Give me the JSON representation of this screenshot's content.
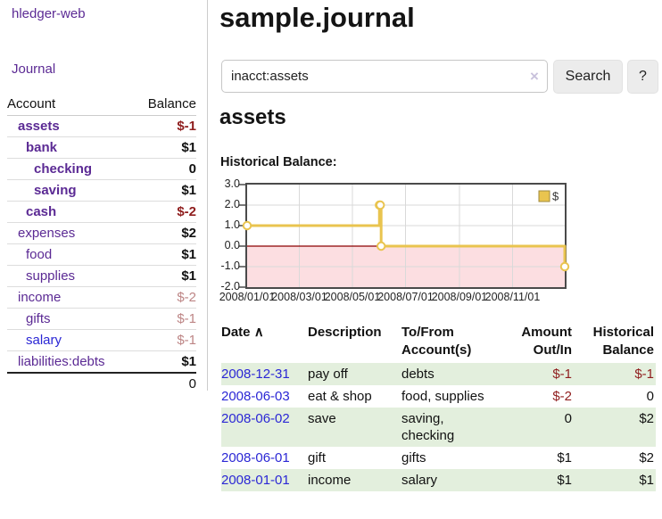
{
  "colors": {
    "purple_link": "#5b2a94",
    "blue_link": "#2b27d5",
    "negative_dark": "#8f1d1d",
    "negative_light": "#bd8585",
    "row_green": "#e3efdd",
    "accent_gold": "#e9c44f"
  },
  "sidebar": {
    "brand": "hledger-web",
    "journal_link": "Journal",
    "accounts_table": {
      "account_header": "Account",
      "balance_header": "Balance",
      "rows": [
        {
          "name": "assets",
          "balance": "$-1",
          "depth": 1,
          "bold": true,
          "tone": "neg-dark",
          "link": "purple"
        },
        {
          "name": "bank",
          "balance": "$1",
          "depth": 2,
          "bold": true,
          "tone": "normal",
          "link": "purple"
        },
        {
          "name": "checking",
          "balance": "0",
          "depth": 3,
          "bold": true,
          "tone": "normal",
          "link": "purple"
        },
        {
          "name": "saving",
          "balance": "$1",
          "depth": 3,
          "bold": true,
          "tone": "normal",
          "link": "purple"
        },
        {
          "name": "cash",
          "balance": "$-2",
          "depth": 2,
          "bold": true,
          "tone": "neg-dark",
          "link": "purple"
        },
        {
          "name": "expenses",
          "balance": "$2",
          "depth": 1,
          "bold": false,
          "tone": "normal",
          "link": "purple"
        },
        {
          "name": "food",
          "balance": "$1",
          "depth": 2,
          "bold": false,
          "tone": "normal",
          "link": "purple"
        },
        {
          "name": "supplies",
          "balance": "$1",
          "depth": 2,
          "bold": false,
          "tone": "normal",
          "link": "purple"
        },
        {
          "name": "income",
          "balance": "$-2",
          "depth": 1,
          "bold": false,
          "tone": "neg-light",
          "link": "purple"
        },
        {
          "name": "gifts",
          "balance": "$-1",
          "depth": 2,
          "bold": false,
          "tone": "neg-light",
          "link": "purple"
        },
        {
          "name": "salary",
          "balance": "$-1",
          "depth": 2,
          "bold": false,
          "tone": "neg-light",
          "link": "blue"
        },
        {
          "name": "liabilities:debts",
          "balance": "$1",
          "depth": 1,
          "bold": false,
          "tone": "normal",
          "link": "purple"
        }
      ],
      "total": "0"
    }
  },
  "main": {
    "title": "sample.journal",
    "search": {
      "value": "inacct:assets",
      "clear_icon": "×",
      "search_button": "Search",
      "help_button": "?"
    },
    "account_heading": "assets",
    "chart_title": "Historical Balance:"
  },
  "chart_data": {
    "type": "line",
    "step": true,
    "title": "Historical Balance",
    "series": [
      {
        "name": "$",
        "color": "#e9c44f",
        "points": [
          [
            "2008-01-01",
            1
          ],
          [
            "2008-06-01",
            2
          ],
          [
            "2008-06-02",
            2
          ],
          [
            "2008-06-03",
            0
          ],
          [
            "2008-12-31",
            -1
          ]
        ]
      }
    ],
    "ylim": [
      -2,
      3
    ],
    "yticks": [
      "3.0",
      "2.0",
      "1.0",
      "0.0",
      "-1.0",
      "-2.0"
    ],
    "xticks": [
      "2008/01/01",
      "2008/03/01",
      "2008/05/01",
      "2008/07/01",
      "2008/09/01",
      "2008/11/01"
    ],
    "legend": "$",
    "legend_position": "top-right",
    "grid": true,
    "negative_region_color": "#fcdee1",
    "zero_line_color": "#8b0000",
    "grid_color": "#d9d9d9"
  },
  "register": {
    "headers": {
      "date": "Date",
      "sort_icon": "∧",
      "description": "Description",
      "accounts": "To/From\nAccount(s)",
      "amount": "Amount\nOut/In",
      "balance": "Historical\nBalance"
    },
    "rows": [
      {
        "date": "2008-12-31",
        "description": "pay off",
        "accounts": "debts",
        "amount": "$-1",
        "amount_tone": "neg",
        "balance": "$-1",
        "balance_tone": "neg",
        "shaded": true
      },
      {
        "date": "2008-06-03",
        "description": "eat & shop",
        "accounts": "food, supplies",
        "amount": "$-2",
        "amount_tone": "neg",
        "balance": "0",
        "balance_tone": "normal",
        "shaded": false
      },
      {
        "date": "2008-06-02",
        "description": "save",
        "accounts": "saving,\nchecking",
        "amount": "0",
        "amount_tone": "normal",
        "balance": "$2",
        "balance_tone": "normal",
        "shaded": true
      },
      {
        "date": "2008-06-01",
        "description": "gift",
        "accounts": "gifts",
        "amount": "$1",
        "amount_tone": "normal",
        "balance": "$2",
        "balance_tone": "normal",
        "shaded": false
      },
      {
        "date": "2008-01-01",
        "description": "income",
        "accounts": "salary",
        "amount": "$1",
        "amount_tone": "normal",
        "balance": "$1",
        "balance_tone": "normal",
        "shaded": true
      }
    ]
  }
}
